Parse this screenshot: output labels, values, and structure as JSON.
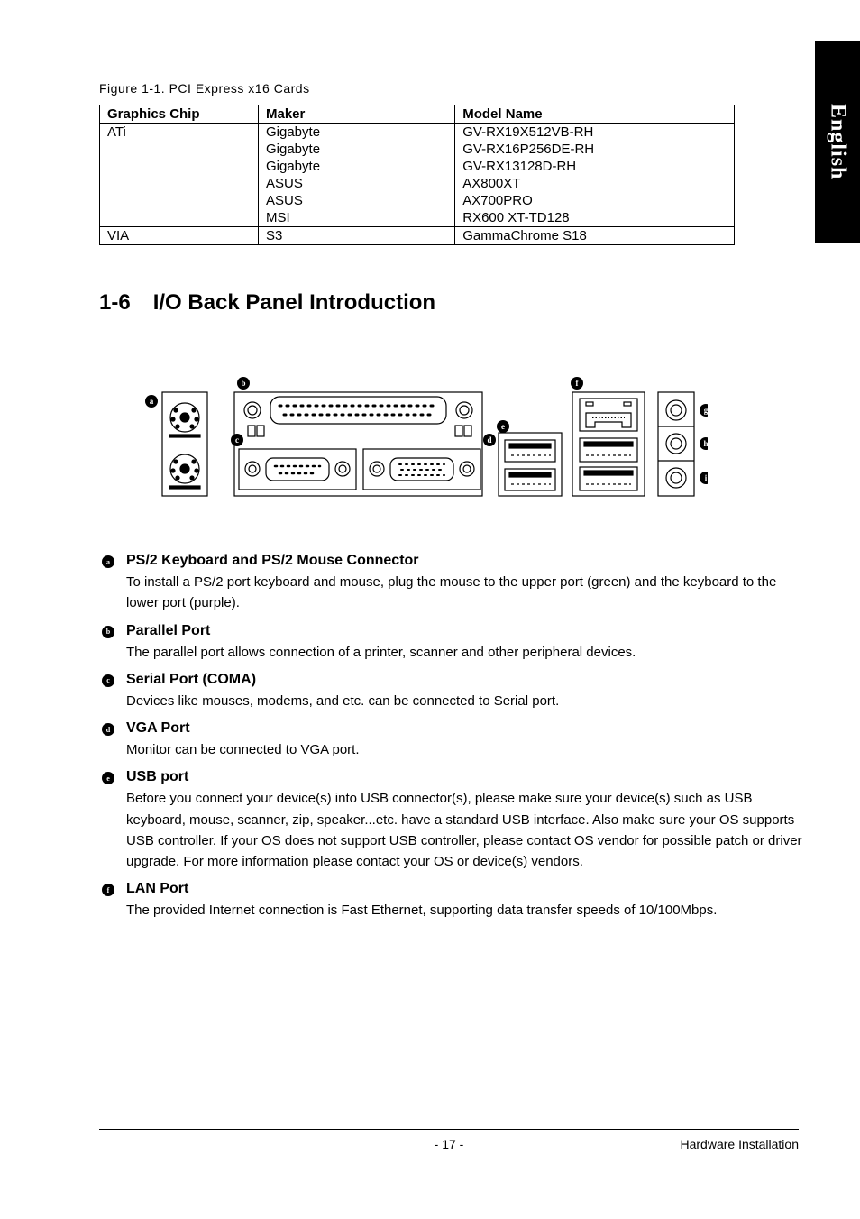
{
  "side_tab": "English",
  "figure_caption": "Figure 1-1. PCI Express x16 Cards",
  "table": {
    "columns": [
      "Graphics Chip",
      "Maker",
      "Model Name"
    ],
    "column_widths": [
      "25%",
      "31%",
      "44%"
    ],
    "groups": [
      {
        "chip": "ATi",
        "rows": [
          [
            "Gigabyte",
            "GV-RX19X512VB-RH"
          ],
          [
            "Gigabyte",
            "GV-RX16P256DE-RH"
          ],
          [
            "Gigabyte",
            "GV-RX13128D-RH"
          ],
          [
            "ASUS",
            "AX800XT"
          ],
          [
            "ASUS",
            "AX700PRO"
          ],
          [
            "MSI",
            "RX600 XT-TD128"
          ]
        ]
      },
      {
        "chip": "VIA",
        "rows": [
          [
            "S3",
            "GammaChrome S18"
          ]
        ]
      }
    ],
    "header_font_size": 15,
    "cell_font_size": 15,
    "border_color": "#000000"
  },
  "section": {
    "number": "1-6",
    "title": "I/O Back Panel Introduction"
  },
  "diagram": {
    "labels": [
      "a",
      "b",
      "c",
      "d",
      "e",
      "f",
      "g",
      "h",
      "i"
    ],
    "stroke": "#000000",
    "fill": "#ffffff",
    "label_bg": "#000000",
    "label_fg": "#ffffff"
  },
  "ports": [
    {
      "marker": "a",
      "title": "PS/2 Keyboard and PS/2 Mouse Connector",
      "desc": "To install a PS/2 port keyboard and mouse, plug the mouse to the upper port (green) and the keyboard to the lower port (purple)."
    },
    {
      "marker": "b",
      "title": "Parallel Port",
      "desc": "The parallel port allows connection of a printer, scanner and other peripheral devices."
    },
    {
      "marker": "c",
      "title": "Serial Port (COMA)",
      "desc": "Devices like mouses, modems, and etc. can be connected to Serial port."
    },
    {
      "marker": "d",
      "title": "VGA Port",
      "desc": "Monitor can be connected to VGA port."
    },
    {
      "marker": "e",
      "title": "USB port",
      "desc": "Before you connect your device(s) into USB connector(s), please make sure your device(s) such as USB keyboard, mouse, scanner, zip, speaker...etc. have a standard USB interface. Also make sure your OS supports USB controller. If your OS does not support USB controller, please contact OS vendor for possible patch or driver upgrade. For more information please contact your OS or device(s) vendors."
    },
    {
      "marker": "f",
      "title": "LAN Port",
      "desc": "The provided Internet connection is Fast Ethernet, supporting data transfer speeds of 10/100Mbps."
    }
  ],
  "footer": {
    "page": "- 17 -",
    "section": "Hardware Installation"
  },
  "colors": {
    "text": "#000000",
    "background": "#ffffff",
    "tab_bg": "#000000",
    "tab_fg": "#ffffff"
  }
}
